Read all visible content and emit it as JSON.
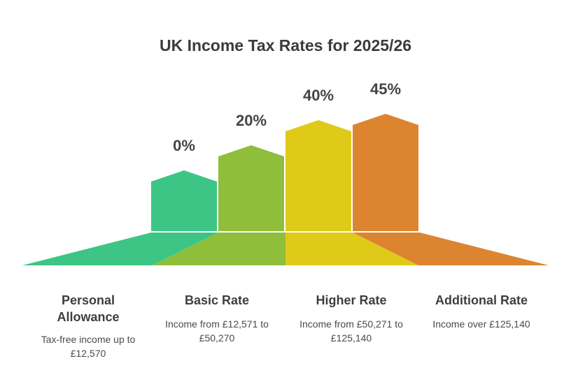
{
  "title": "UK Income Tax Rates for 2025/26",
  "tiers": [
    {
      "rate": "0%",
      "name": "Personal Allowance",
      "description": "Tax-free income up to £12,570",
      "color": "#3cc584"
    },
    {
      "rate": "20%",
      "name": "Basic Rate",
      "description": "Income from £12,571 to £50,270",
      "color": "#8fbe3b"
    },
    {
      "rate": "40%",
      "name": "Higher Rate",
      "description": "Income from £50,271 to £125,140",
      "color": "#dfca1a"
    },
    {
      "rate": "45%",
      "name": "Additional Rate",
      "description": "Income over £125,140",
      "color": "#dd8430"
    }
  ]
}
